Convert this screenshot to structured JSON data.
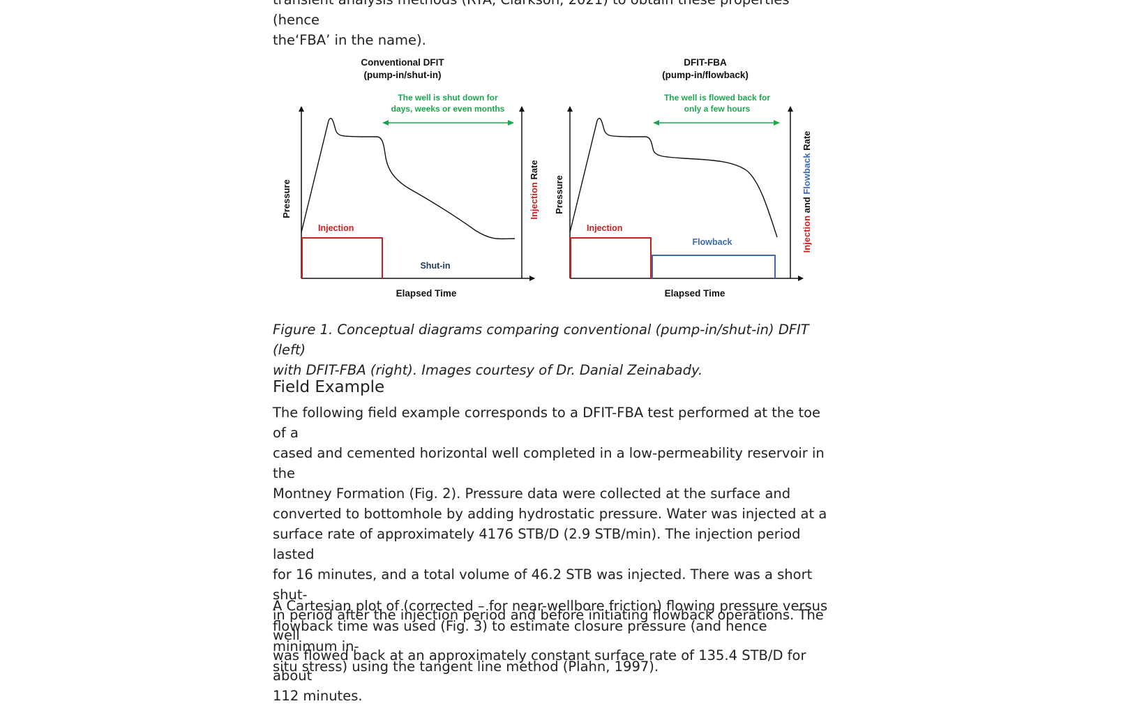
{
  "intro": {
    "line1": "transient analysis methods (RTA, Clarkson, 2021) to obtain these properties (hence",
    "line2": "the‘FBA’ in the name)."
  },
  "figure": {
    "left": {
      "title1": "Conventional DFIT",
      "title2": "(pump-in/shut-in)",
      "note1": "The well is shut down for",
      "note2": "days, weeks or even months",
      "y_label": "Pressure",
      "right_label_a": "Injection",
      "right_label_b": " Rate",
      "injection_label": "Injection",
      "shutin_label": "Shut-in",
      "x_label": "Elapsed Time"
    },
    "right": {
      "title1": "DFIT-FBA",
      "title2": "(pump-in/flowback)",
      "note1": "The well is flowed back for",
      "note2": "only a few hours",
      "y_label": "Pressure",
      "right_label_a": "Injection",
      "right_label_b": " and ",
      "right_label_c": "Flowback",
      "right_label_d": " Rate",
      "injection_label": "Injection",
      "flowback_label": "Flowback",
      "x_label": "Elapsed Time"
    },
    "colors": {
      "injection": "#cc1f1f",
      "flowback": "#3c6bb5",
      "note": "#1aa84f",
      "shutin": "#1f3a5a",
      "axis": "#111111"
    },
    "caption1": "Figure 1. Conceptual diagrams comparing conventional (pump-in/shut-in) DFIT (left)",
    "caption2": "with DFIT-FBA (right). Images courtesy of Dr. Danial Zeinabady."
  },
  "section": {
    "heading": "Field Example",
    "p1": [
      "The following field example corresponds to a DFIT-FBA test performed at the toe of a",
      "cased and cemented horizontal well completed in a low-permeability reservoir in the",
      "Montney Formation (Fig. 2). Pressure data were collected at the surface and",
      "converted to bottomhole by adding hydrostatic pressure. Water was injected at a",
      "surface rate of approximately 4176 STB/D (2.9 STB/min). The injection period lasted",
      "for 16 minutes, and a total volume of 46.2 STB was injected. There was a short shut-",
      "in period after the injection period and before initiating flowback operations. The well",
      "was flowed back at an approximately constant surface rate of 135.4 STB/D for about",
      "112 minutes."
    ],
    "p2": [
      "A Cartesian plot of (corrected – for near-wellbore friction) flowing pressure versus",
      "flowback time was used (Fig. 3) to estimate closure pressure (and hence minimum in-",
      "situ stress) using the tangent line method (Plahn, 1997)."
    ]
  }
}
